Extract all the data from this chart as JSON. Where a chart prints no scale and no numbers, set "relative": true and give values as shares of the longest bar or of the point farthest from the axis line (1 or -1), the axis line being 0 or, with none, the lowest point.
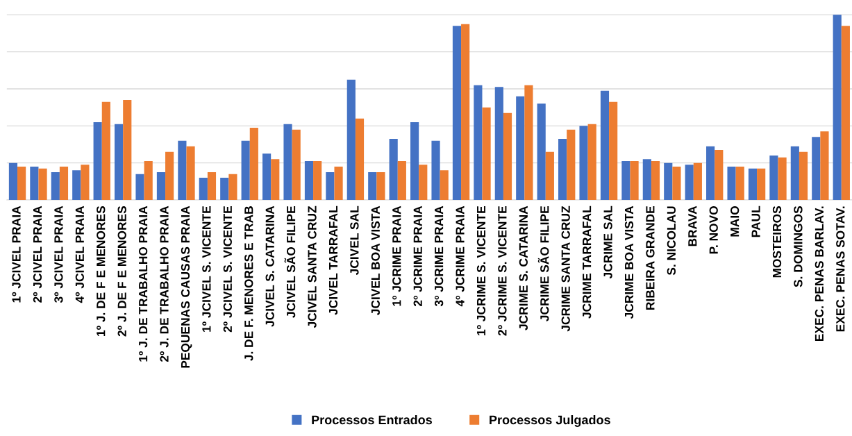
{
  "chart_data": {
    "type": "bar",
    "relative": true,
    "grid": "y",
    "legend": "bottom",
    "categories": [
      "1º JCIVEL PRAIA",
      "2º JCIVEL PRAIA",
      "3º JCIVEL PRAIA",
      "4º JCIVEL PRAIA",
      "1º J. DE F E MENORES",
      "2º J. DE F E MENORES",
      "1º J. DE TRABALHO PRAIA",
      "2º J. DE TRABALHO PRAIA",
      "PEQUENAS CAUSAS PRAIA",
      "1º JCIVEL S. VICENTE",
      "2º JCIVEL S. VICENTE",
      "J. DE F. MENORES E TRAB",
      "JCIVEL S. CATARINA",
      "JCIVEL SÃO FILIPE",
      "JCIVEL SANTA CRUZ",
      "JCIVEL TARRAFAL",
      "JCIVEL SAL",
      "JCIVEL BOA VISTA",
      "1º JCRIME PRAIA",
      "2º JCRIME PRAIA",
      "3º JCRIME PRAIA",
      "4º JCRIME PRAIA",
      "1º JCRIME S. VICENTE",
      "2º JCRIME S. VICENTE",
      "JCRIME S. CATARINA",
      "JCRIME SÃO FILIPE",
      "JCRIME SANTA CRUZ",
      "JCRIME TARRAFAL",
      "JCRIME SAL",
      "JCRIME BOA VISTA",
      "RIBEIRA GRANDE",
      "S. NICOLAU",
      "BRAVA",
      "P. NOVO",
      "MAIO",
      "PAUL",
      "MOSTEIROS",
      "S. DOMINGOS",
      "EXEC. PENAS BARLAV.",
      "EXEC. PENAS SOTAV."
    ],
    "series": [
      {
        "name": "Processos Entrados",
        "color": "#4472c4",
        "values": [
          0.2,
          0.18,
          0.15,
          0.16,
          0.42,
          0.41,
          0.14,
          0.15,
          0.32,
          0.12,
          0.12,
          0.32,
          0.25,
          0.41,
          0.21,
          0.15,
          0.65,
          0.15,
          0.33,
          0.42,
          0.32,
          0.94,
          0.62,
          0.61,
          0.56,
          0.52,
          0.33,
          0.4,
          0.59,
          0.21,
          0.22,
          0.2,
          0.19,
          0.29,
          0.18,
          0.17,
          0.24,
          0.29,
          0.34,
          1.0
        ]
      },
      {
        "name": "Processos Julgados",
        "color": "#ed7d31",
        "values": [
          0.18,
          0.17,
          0.18,
          0.19,
          0.53,
          0.54,
          0.21,
          0.26,
          0.29,
          0.15,
          0.14,
          0.39,
          0.22,
          0.38,
          0.21,
          0.18,
          0.44,
          0.15,
          0.21,
          0.19,
          0.16,
          0.95,
          0.5,
          0.47,
          0.62,
          0.26,
          0.38,
          0.41,
          0.53,
          0.21,
          0.21,
          0.18,
          0.2,
          0.27,
          0.18,
          0.17,
          0.23,
          0.26,
          0.37,
          0.94
        ]
      }
    ]
  }
}
